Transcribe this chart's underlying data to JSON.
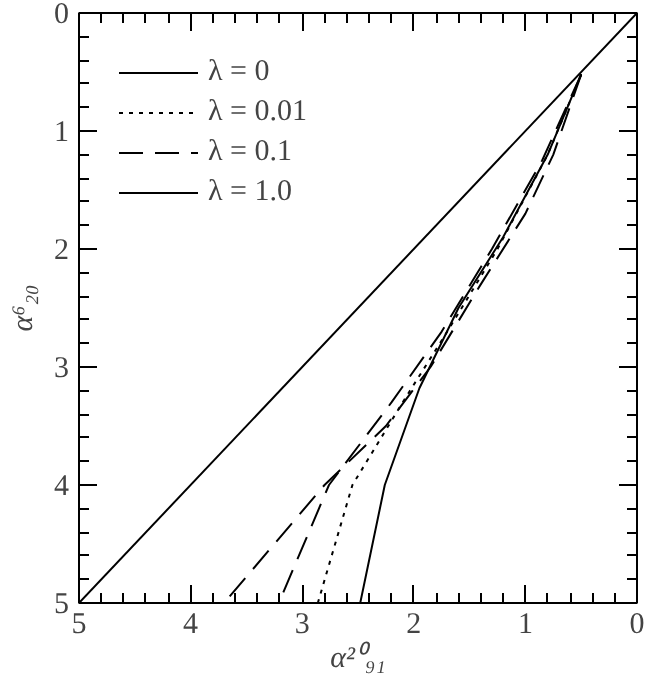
{
  "chart_data": {
    "type": "line",
    "xlabel": "α²⁰₉₁",
    "ylabel": "α⁶₂₀",
    "xlim": [
      5,
      0
    ],
    "ylim": [
      5,
      0
    ],
    "xticks": [
      0,
      1,
      2,
      3,
      4,
      5
    ],
    "yticks": [
      0,
      1,
      2,
      3,
      4,
      5
    ],
    "legend": "top left",
    "grid": false,
    "series": [
      {
        "name": "λ = 0",
        "color": "#000000",
        "line_style": "solid",
        "x": [
          5,
          0
        ],
        "values": [
          5,
          0
        ]
      },
      {
        "name": "λ = 0.01",
        "color": "#000000",
        "line_style": "dotted",
        "x": [
          0.5,
          0.8,
          1.25,
          1.7,
          2.1,
          2.55,
          2.86
        ],
        "values": [
          0.52,
          1.2,
          2.0,
          2.7,
          3.3,
          4.0,
          5
        ]
      },
      {
        "name": "λ = 0.1",
        "color": "#000000",
        "line_style": "dashed",
        "x": [
          0.5,
          0.75,
          1.0,
          1.4,
          1.85,
          2.25,
          2.8,
          3.25,
          3.7
        ],
        "values": [
          0.52,
          1.2,
          1.7,
          2.3,
          3.0,
          3.5,
          4.0,
          4.5,
          5
        ]
      },
      {
        "name": "λ = 1.0",
        "color": "#000000",
        "line_style": "solid",
        "x": [
          0.5,
          0.8,
          1.2,
          1.6,
          1.95,
          2.26,
          2.48
        ],
        "values": [
          0.52,
          1.2,
          1.9,
          2.5,
          3.18,
          4.0,
          5
        ]
      },
      {
        "color": "#000000",
        "line_style": "dashed",
        "x": [
          0.5,
          0.85,
          1.3,
          1.75,
          2.2,
          2.76,
          3.21
        ],
        "values": [
          0.52,
          1.25,
          2.0,
          2.7,
          3.3,
          4.0,
          5
        ]
      }
    ]
  }
}
